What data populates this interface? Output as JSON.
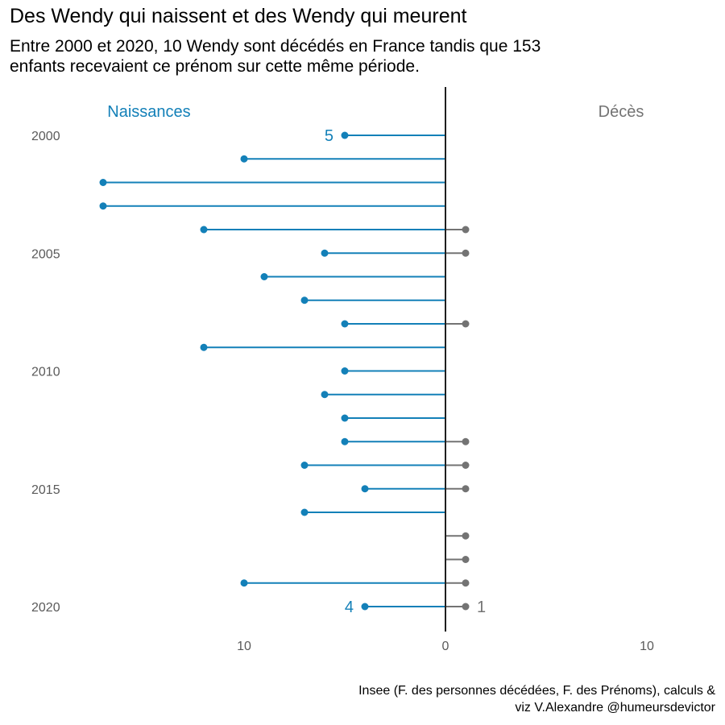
{
  "title": "Des Wendy qui naissent et des Wendy qui meurent",
  "subtitle": [
    "Entre 2000 et 2020, 10 Wendy sont décédés en France tandis que 153",
    "enfants recevaient ce prénom sur cette même période."
  ],
  "caption": [
    "Insee (F. des personnes décédées, F. des Prénoms), calculs &",
    "viz V.Alexandre @humeursdevictor"
  ],
  "colors": {
    "births": "#1380b8",
    "deaths": "#737373",
    "axis": "#1f1f1f",
    "tick_text": "#5a5a5a"
  },
  "chart_data": {
    "type": "lollipop",
    "y_axis": {
      "ticks": [
        2000,
        2005,
        2010,
        2015,
        2020
      ]
    },
    "x_axis": {
      "tick_labels": [
        "10",
        "0",
        "10"
      ],
      "tick_values": [
        -10,
        0,
        10
      ],
      "range": [
        -17,
        13
      ]
    },
    "group_labels": {
      "left": "Naissances",
      "right": "Décès"
    },
    "years": [
      2000,
      2001,
      2002,
      2003,
      2004,
      2005,
      2006,
      2007,
      2008,
      2009,
      2010,
      2011,
      2012,
      2013,
      2014,
      2015,
      2016,
      2017,
      2018,
      2019,
      2020
    ],
    "series": [
      {
        "name": "Naissances",
        "values": [
          5,
          10,
          17,
          17,
          12,
          6,
          9,
          7,
          5,
          12,
          5,
          6,
          5,
          5,
          7,
          4,
          7,
          0,
          0,
          10,
          4
        ]
      },
      {
        "name": "Décès",
        "values": [
          0,
          0,
          0,
          0,
          1,
          1,
          0,
          0,
          1,
          0,
          0,
          0,
          0,
          1,
          1,
          1,
          0,
          1,
          1,
          1,
          1
        ]
      }
    ],
    "annotations": [
      {
        "year": 2000,
        "series": "Naissances",
        "text": "5"
      },
      {
        "year": 2020,
        "series": "Naissances",
        "text": "4"
      },
      {
        "year": 2020,
        "series": "Décès",
        "text": "1"
      }
    ]
  }
}
